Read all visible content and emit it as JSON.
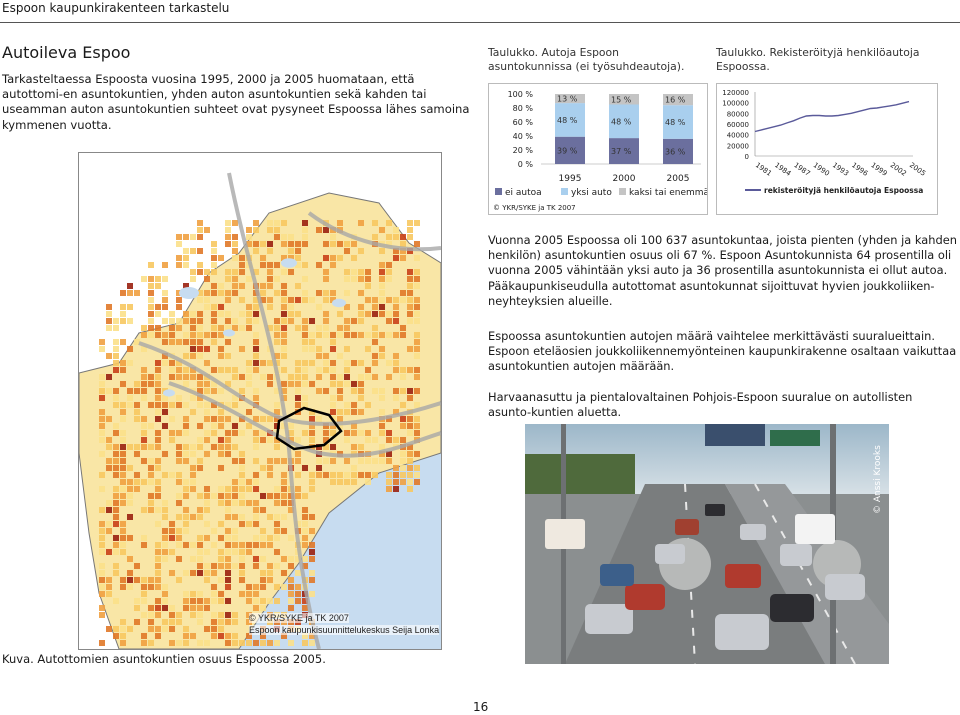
{
  "header": {
    "running_title": "Espoon kaupunkirakenteen tarkastelu"
  },
  "section": {
    "title": "Autoileva Espoo",
    "intro": "Tarkasteltaessa Espoosta vuosina 1995, 2000 ja 2005 huomataan, että autottomi-en asuntokuntien, yhden auton asuntokuntien sekä kahden tai useamman auton asuntokuntien suhteet ovat pysyneet Espoossa lähes samoina kymmenen vuotta."
  },
  "table1": {
    "caption": "Taulukko. Autoja Espoon asuntokunnissa (ei työsuhdeautoja).",
    "yticks": [
      "100 %",
      "80 %",
      "60 %",
      "40 %",
      "20 %",
      "0 %"
    ],
    "years": [
      "1995",
      "2000",
      "2005"
    ],
    "legend": [
      "ei autoa",
      "yksi auto",
      "kaksi tai enemmän"
    ],
    "segments": [
      {
        "year": "1995",
        "ei_autoa": "39 %",
        "yksi_auto": "48 %",
        "kaksi": "13 %"
      },
      {
        "year": "2000",
        "ei_autoa": "37 %",
        "yksi_auto": "48 %",
        "kaksi": "15 %"
      },
      {
        "year": "2005",
        "ei_autoa": "36 %",
        "yksi_auto": "48 %",
        "kaksi": "16 %"
      }
    ],
    "credit": "© YKR/SYKE ja TK 2007",
    "colors": {
      "ei_autoa": "#6b6f9e",
      "yksi_auto": "#a9cfee",
      "kaksi": "#c4c4c4"
    }
  },
  "table2": {
    "caption": "Taulukko. Rekisteröityjä henkilöautoja Espoossa.",
    "yticks": [
      "120000",
      "100000",
      "80000",
      "60000",
      "40000",
      "20000",
      "0"
    ],
    "xticks": [
      "1981",
      "1984",
      "1987",
      "1990",
      "1993",
      "1996",
      "1999",
      "2002",
      "2005"
    ],
    "series_name": "rekisteröityjä henkilöautoja Espoossa",
    "line_color": "#5a5a9a"
  },
  "chart_data": [
    {
      "type": "bar",
      "categories": [
        "1995",
        "2000",
        "2005"
      ],
      "series": [
        {
          "name": "ei autoa",
          "values": [
            39,
            37,
            36
          ]
        },
        {
          "name": "yksi auto",
          "values": [
            48,
            48,
            48
          ]
        },
        {
          "name": "kaksi tai enemmän",
          "values": [
            13,
            15,
            16
          ]
        }
      ],
      "ylim": [
        0,
        100
      ],
      "stacked": true
    },
    {
      "type": "line",
      "x": [
        1981,
        1982,
        1983,
        1984,
        1985,
        1986,
        1987,
        1988,
        1989,
        1990,
        1991,
        1992,
        1993,
        1994,
        1995,
        1996,
        1997,
        1998,
        1999,
        2000,
        2001,
        2002,
        2003,
        2004,
        2005
      ],
      "series": [
        {
          "name": "rekisteröityjä henkilöautoja Espoossa",
          "values": [
            46000,
            49000,
            52000,
            55000,
            58000,
            62000,
            66000,
            71000,
            75000,
            76000,
            76000,
            75000,
            75000,
            76000,
            78000,
            80000,
            83000,
            86000,
            89000,
            90000,
            92000,
            94000,
            96000,
            99000,
            102000
          ]
        }
      ],
      "ylim": [
        0,
        120000
      ]
    }
  ],
  "body": {
    "p1": "Vuonna 2005 Espoossa oli 100 637 asuntokuntaa, joista pienten (yhden ja kahden henkilön) asuntokuntien osuus oli 67 %. Espoon Asuntokunnista 64 prosentilla oli vuonna 2005 vähintään yksi auto ja 36 prosentilla asuntokunnista ei ollut autoa. Pääkaupunkiseudulla autottomat asuntokunnat sijoittuvat hyvien joukkoliiken-neyhteyksien alueille.",
    "p2": "Espoossa asuntokuntien autojen määrä vaihtelee merkittävästi suuralueittain. Espoon eteläosien joukkoliikennemyönteinen kaupunkirakenne osaltaan vaikuttaa asuntokuntien autojen määrään.",
    "p3": "Harvaanasuttu ja pientalovaltainen Pohjois-Espoon suuralue on autollisten asunto-kuntien aluetta."
  },
  "map": {
    "credit1": "© YKR/SYKE ja TK 2007",
    "credit2": "Espoon kaupunkisuunnittelukeskus Seija Lonka",
    "caption": "Kuva. Autottomien asuntokuntien osuus Espoossa 2005."
  },
  "photo": {
    "credit": "© Anssi Krooks"
  },
  "page_number": "16"
}
